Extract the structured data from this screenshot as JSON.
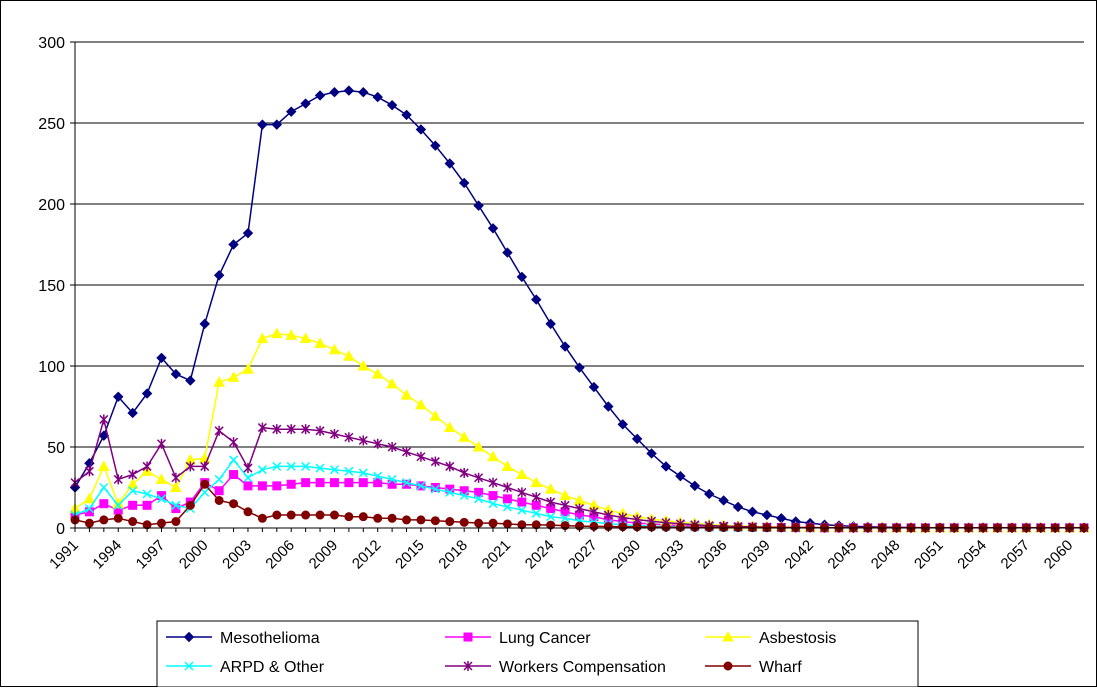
{
  "chart_data": {
    "type": "line",
    "title": "",
    "xlabel": "",
    "ylabel": "",
    "x_range": [
      1991,
      2061
    ],
    "ylim": [
      0,
      300
    ],
    "y_ticks": [
      0,
      50,
      100,
      150,
      200,
      250,
      300
    ],
    "x_ticks": [
      "1991",
      "1994",
      "1997",
      "2000",
      "2003",
      "2006",
      "2009",
      "2012",
      "2015",
      "2018",
      "2021",
      "2024",
      "2027",
      "2030",
      "2033",
      "2036",
      "2039",
      "2042",
      "2045",
      "2048",
      "2051",
      "2054",
      "2057",
      "2060"
    ],
    "grid": "horizontal",
    "legend_position": "bottom",
    "series": [
      {
        "name": "Mesothelioma",
        "color": "#000080",
        "marker": "diamond",
        "values": [
          25,
          40,
          57,
          81,
          71,
          83,
          105,
          95,
          91,
          126,
          156,
          175,
          182,
          249,
          249,
          257,
          262,
          267,
          269,
          270,
          269,
          266,
          261,
          255,
          246,
          236,
          225,
          213,
          199,
          185,
          170,
          155,
          141,
          126,
          112,
          99,
          87,
          75,
          64,
          55,
          46,
          38,
          32,
          26,
          21,
          17,
          13,
          10,
          8,
          6,
          4,
          3,
          2,
          1.5,
          1,
          0.8,
          0.5,
          0.4,
          0.3,
          0.2,
          0.2,
          0.1,
          0.1,
          0.1,
          0.1,
          0.1,
          0.1,
          0.1,
          0.1,
          0.1,
          0.1
        ]
      },
      {
        "name": "Lung Cancer",
        "color": "#FF00FF",
        "marker": "square",
        "values": [
          8,
          10,
          15,
          11,
          14,
          14,
          20,
          12,
          16,
          28,
          23,
          33,
          26,
          26,
          26,
          27,
          28,
          28,
          28,
          28,
          28,
          28,
          27,
          27,
          26,
          25,
          24,
          23,
          22,
          20,
          18,
          16,
          14,
          12,
          10,
          8,
          7,
          5,
          4,
          3,
          2.5,
          2,
          1.5,
          1.2,
          1,
          0.8,
          0.6,
          0.5,
          0.4,
          0.3,
          0.2,
          0.2,
          0.1,
          0.1,
          0.1,
          0.1,
          0.1,
          0.1,
          0.1,
          0.1,
          0.1,
          0.1,
          0.1,
          0.1,
          0.1,
          0.1,
          0.1,
          0.1,
          0.1,
          0.1,
          0.1
        ]
      },
      {
        "name": "Asbestosis",
        "color": "#FFFF00",
        "marker": "triangle",
        "values": [
          12,
          18,
          38,
          15,
          27,
          35,
          30,
          25,
          42,
          43,
          90,
          93,
          98,
          117,
          120,
          119,
          117,
          114,
          110,
          106,
          100,
          95,
          89,
          82,
          76,
          69,
          62,
          56,
          50,
          44,
          38,
          33,
          28,
          24,
          20,
          17,
          14,
          11,
          9,
          7,
          5.5,
          4.5,
          3.5,
          2.8,
          2.2,
          1.7,
          1.3,
          1,
          0.8,
          0.6,
          0.5,
          0.4,
          0.3,
          0.3,
          0.2,
          0.2,
          0.2,
          0.1,
          0.1,
          0.1,
          0.1,
          0.1,
          0.1,
          0.1,
          0.1,
          0.1,
          0.1,
          0.1,
          0.1,
          0.1,
          0.1
        ]
      },
      {
        "name": "ARPD & Other",
        "color": "#00FFFF",
        "marker": "x",
        "values": [
          8,
          12,
          25,
          14,
          23,
          21,
          18,
          14,
          12,
          22,
          30,
          42,
          31,
          36,
          38,
          38,
          38,
          37,
          36,
          35,
          34,
          32,
          30,
          28,
          26,
          24,
          22,
          20,
          18,
          15,
          13,
          11,
          9,
          7,
          6,
          4.5,
          3.5,
          2.7,
          2,
          1.5,
          1.2,
          0.9,
          0.7,
          0.5,
          0.4,
          0.3,
          0.2,
          0.2,
          0.1,
          0.1,
          0.1,
          0.1,
          0.1,
          0.1,
          0.1,
          0.1,
          0.1,
          0.1,
          0.1,
          0.1,
          0.1,
          0.1,
          0.1,
          0.1,
          0.1,
          0.1,
          0.1,
          0.1,
          0.1,
          0.1,
          0.1
        ]
      },
      {
        "name": "Workers Compensation",
        "color": "#800080",
        "marker": "star",
        "values": [
          28,
          35,
          67,
          30,
          33,
          38,
          52,
          31,
          38,
          38,
          60,
          53,
          37,
          62,
          61,
          61,
          61,
          60,
          58,
          56,
          54,
          52,
          50,
          47,
          44,
          41,
          38,
          34,
          31,
          28,
          25,
          22,
          19,
          16,
          14,
          12,
          10,
          8,
          6.5,
          5.2,
          4.2,
          3.3,
          2.6,
          2,
          1.5,
          1.2,
          0.9,
          0.7,
          0.5,
          0.4,
          0.3,
          0.3,
          0.2,
          0.2,
          0.1,
          0.1,
          0.1,
          0.1,
          0.1,
          0.1,
          0.1,
          0.1,
          0.1,
          0.1,
          0.1,
          0.1,
          0.1,
          0.1,
          0.1,
          0.1,
          0.1
        ]
      },
      {
        "name": "Wharf",
        "color": "#800000",
        "marker": "circle",
        "values": [
          5,
          3,
          5,
          6,
          4,
          2,
          3,
          4,
          14,
          27,
          17,
          15,
          10,
          6,
          8,
          8,
          8,
          8,
          8,
          7,
          7,
          6,
          6,
          5,
          5,
          4.5,
          4,
          3.5,
          3,
          3,
          2.5,
          2,
          2,
          1.8,
          1.5,
          1.2,
          1,
          0.9,
          0.8,
          0.7,
          0.6,
          0.5,
          0.4,
          0.4,
          0.3,
          0.3,
          0.3,
          0.2,
          0.2,
          0.2,
          0.2,
          0.2,
          0.1,
          0.1,
          0.1,
          0.1,
          0.1,
          0.1,
          0.1,
          0.1,
          0.1,
          0.1,
          0.1,
          0.1,
          0.1,
          0.1,
          0.1,
          0.1,
          0.1,
          0.1,
          0.1
        ]
      }
    ]
  }
}
